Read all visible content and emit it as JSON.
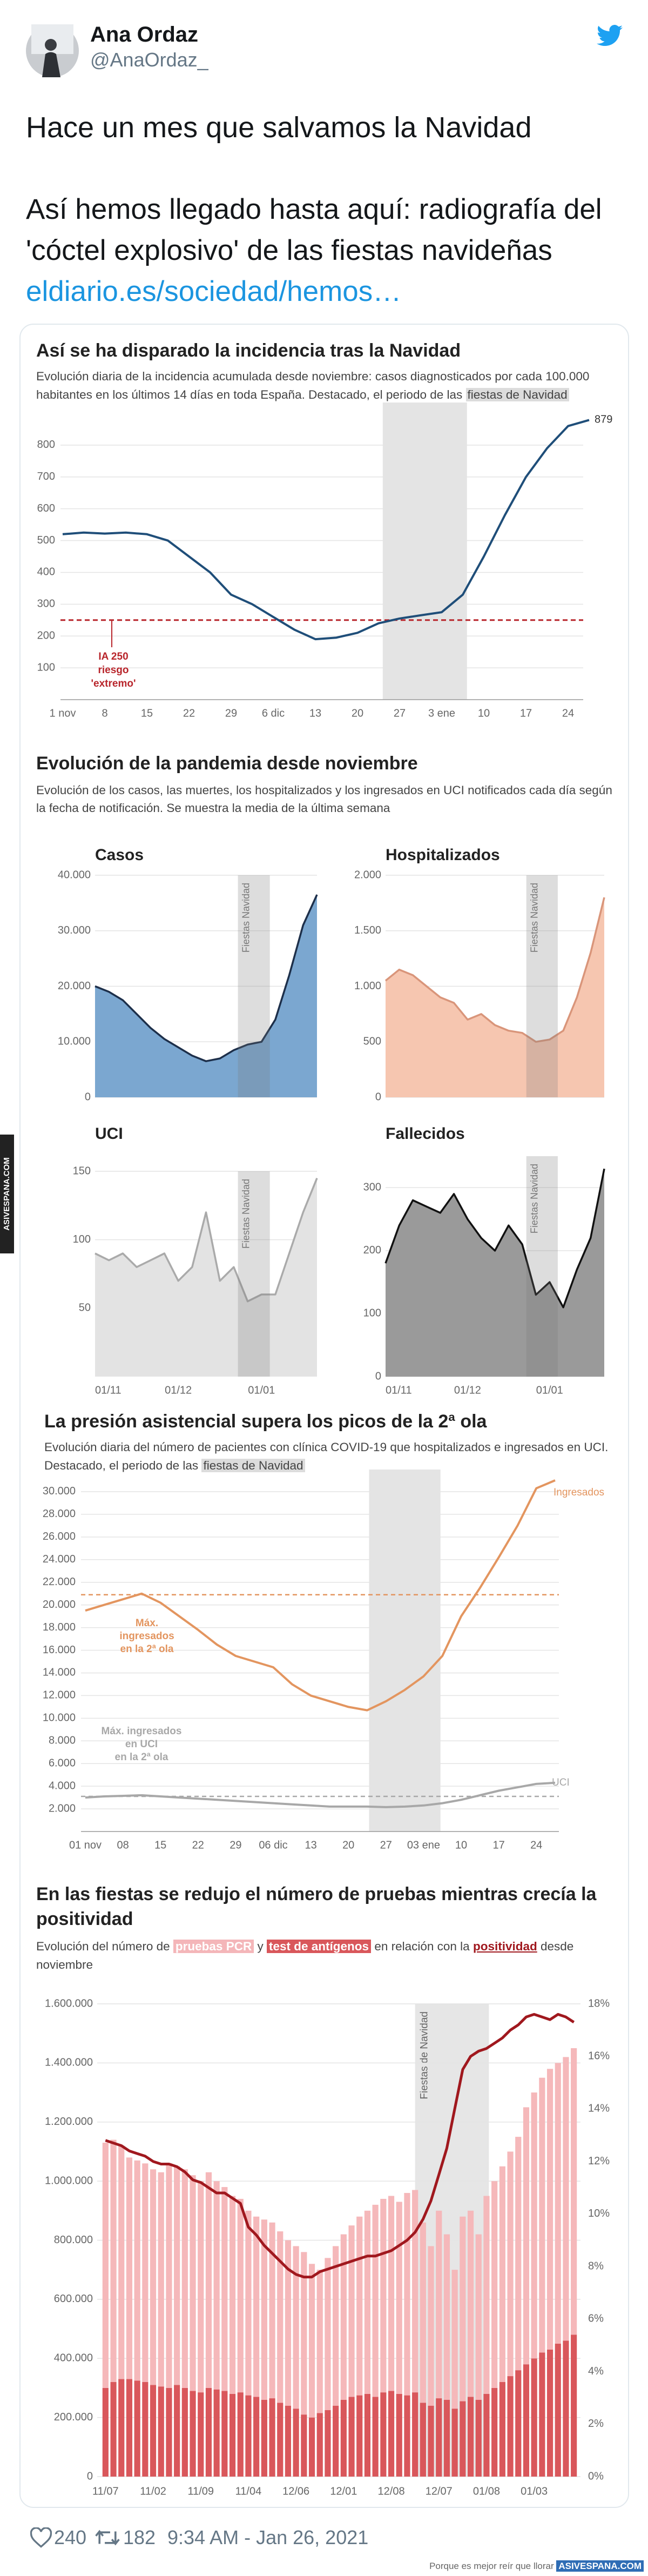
{
  "tweet": {
    "name": "Ana Ordaz",
    "handle": "@AnaOrdaz_",
    "text_1": "Hace un mes que salvamos la Navidad",
    "text_2": "Así hemos llegado hasta aquí: radiografía del 'cóctel explosivo' de las fiestas navideñas",
    "link": "eldiario.es/sociedad/hemos…",
    "likes": 240,
    "retweets": 182,
    "time": "9:34 AM - Jan 26, 2021"
  },
  "watermark": {
    "side": "ASIVESPANA.COM",
    "footer_text": "Porque es mejor reír que llorar",
    "footer_site": "ASIVESPANA.COM"
  },
  "chart_data": [
    {
      "type": "line",
      "title": "Así se ha disparado la incidencia tras la Navidad",
      "subtitle": "Evolución diaria de la incidencia acumulada desde noviembre: casos diagnosticados por cada 100.000 habitantes en los últimos 14 días en toda España. Destacado, el periodo de las",
      "highlight_label": "fiestas de Navidad",
      "categories": [
        "1 nov",
        null,
        "8",
        null,
        "15",
        null,
        "22",
        null,
        "29",
        null,
        "6 dic",
        null,
        "13",
        null,
        "20",
        null,
        "27",
        null,
        "3 ene",
        null,
        "10",
        null,
        "17",
        null,
        "24",
        null
      ],
      "values": [
        520,
        525,
        522,
        525,
        520,
        500,
        450,
        400,
        330,
        300,
        260,
        220,
        190,
        195,
        210,
        240,
        255,
        265,
        275,
        330,
        450,
        580,
        700,
        790,
        860,
        879
      ],
      "color": "#1f4e79",
      "threshold": 250,
      "threshold_color": "#b8252b",
      "threshold_label": [
        "IA 250",
        "riesgo",
        "'extremo'"
      ],
      "ylim": [
        0,
        900
      ],
      "yticks": [
        100,
        200,
        300,
        400,
        500,
        600,
        700,
        800
      ],
      "grid": true
    },
    {
      "type": "area",
      "title": "Evolución de la pandemia desde noviembre",
      "subtitle": "Evolución de los casos, las muertes, los hospitalizados y los ingresados en UCI notificados cada día según la fecha de notificación. Se muestra la media de la última semana",
      "band_label": "Fiestas Navidad",
      "categories": [
        "01/11",
        null,
        null,
        null,
        null,
        null,
        "01/12",
        null,
        null,
        null,
        null,
        null,
        "01/01",
        null,
        null,
        null,
        null
      ],
      "panels": [
        {
          "title": "Casos",
          "color": "#7ba7d0",
          "line_color": "#1d2f4a",
          "ylim": [
            0,
            40000
          ],
          "yticks": [
            0,
            {
              "value": 10000,
              "label": "10.000"
            },
            {
              "value": 20000,
              "label": "20.000"
            },
            {
              "value": 30000,
              "label": "30.000"
            },
            {
              "value": 40000,
              "label": "40.000"
            }
          ],
          "values": [
            20000,
            19000,
            17500,
            15000,
            12500,
            10500,
            9000,
            7500,
            6500,
            7000,
            8500,
            9500,
            10000,
            14000,
            22000,
            31000,
            36500
          ]
        },
        {
          "title": "Hospitalizados",
          "color": "#f6c6b0",
          "line_color": "#d9957a",
          "ylim": [
            0,
            2000
          ],
          "yticks": [
            0,
            500,
            {
              "value": 1000,
              "label": "1.000"
            },
            {
              "value": 1500,
              "label": "1.500"
            },
            {
              "value": 2000,
              "label": "2.000"
            }
          ],
          "values": [
            1050,
            1150,
            1100,
            1000,
            900,
            850,
            700,
            750,
            650,
            600,
            580,
            500,
            520,
            600,
            900,
            1300,
            1800
          ]
        },
        {
          "title": "UCI",
          "color": "#e3e3e3",
          "line_color": "#aaaaaa",
          "ylim": [
            0,
            150
          ],
          "yticks": [
            50,
            100,
            150
          ],
          "values": [
            90,
            85,
            90,
            80,
            85,
            90,
            70,
            80,
            120,
            70,
            80,
            55,
            60,
            60,
            90,
            120,
            145
          ]
        },
        {
          "title": "Fallecidos",
          "color": "#9a9a9a",
          "line_color": "#111111",
          "ylim": [
            0,
            350
          ],
          "yticks": [
            0,
            100,
            200,
            300
          ],
          "values": [
            180,
            240,
            280,
            270,
            260,
            290,
            250,
            220,
            200,
            240,
            210,
            130,
            150,
            110,
            170,
            220,
            330
          ]
        }
      ]
    },
    {
      "type": "line",
      "title": "La presión asistencial supera los picos de la 2ª ola",
      "subtitle": "Evolución diaria del número de pacientes con clínica COVID-19 que hospitalizados e ingresados en UCI. Destacado, el periodo de las",
      "highlight_label": "fiestas de Navidad",
      "categories": [
        "01 nov",
        null,
        "08",
        null,
        "15",
        null,
        "22",
        null,
        "29",
        null,
        "06 dic",
        null,
        "13",
        null,
        "20",
        null,
        "27",
        null,
        "03 ene",
        null,
        "10",
        null,
        "17",
        null,
        "24",
        null
      ],
      "series": [
        {
          "name": "Ingresados",
          "color": "#e3955f",
          "max": 20900,
          "max_label": [
            "Máx.",
            "ingresados",
            "en la 2ª ola"
          ],
          "values": [
            19500,
            20000,
            20500,
            21000,
            20200,
            19000,
            17800,
            16500,
            15500,
            15000,
            14500,
            13000,
            12000,
            11500,
            11000,
            10700,
            11500,
            12500,
            13700,
            15500,
            19000,
            21500,
            24200,
            27000,
            30300,
            31000
          ]
        },
        {
          "name": "UCI",
          "color": "#a8a8a8",
          "max": 3100,
          "max_label": [
            "Máx. ingresados",
            "en UCI",
            "en la 2ª ola"
          ],
          "values": [
            3000,
            3100,
            3150,
            3200,
            3100,
            3000,
            2900,
            2800,
            2700,
            2600,
            2500,
            2400,
            2300,
            2200,
            2200,
            2200,
            2150,
            2200,
            2300,
            2500,
            2800,
            3200,
            3600,
            3900,
            4200,
            4300
          ]
        }
      ],
      "ylim": [
        0,
        31000
      ],
      "yticks": [
        {
          "value": 2000,
          "label": "2.000"
        },
        {
          "value": 4000,
          "label": "4.000"
        },
        {
          "value": 6000,
          "label": "6.000"
        },
        {
          "value": 8000,
          "label": "8.000"
        },
        {
          "value": 10000,
          "label": "10.000"
        },
        {
          "value": 12000,
          "label": "12.000"
        },
        {
          "value": 14000,
          "label": "14.000"
        },
        {
          "value": 16000,
          "label": "16.000"
        },
        {
          "value": 18000,
          "label": "18.000"
        },
        {
          "value": 20000,
          "label": "20.000"
        },
        {
          "value": 22000,
          "label": "22.000"
        },
        {
          "value": 24000,
          "label": "24.000"
        },
        {
          "value": 26000,
          "label": "26.000"
        },
        {
          "value": 28000,
          "label": "28.000"
        },
        {
          "value": 30000,
          "label": "30.000"
        }
      ],
      "grid": true
    },
    {
      "type": "bar",
      "title": "En las fiestas se redujo el número de pruebas mientras crecía la positividad",
      "subtitle_1": "Evolución del número de",
      "subtitle_2": "y",
      "subtitle_3": "en relación con la",
      "subtitle_4": "desde noviembre",
      "band_label": "Fiestas de Navidad",
      "stacked": true,
      "categories": [
        "11/07",
        null,
        null,
        null,
        null,
        null,
        "11/02",
        null,
        null,
        null,
        null,
        null,
        "11/09",
        null,
        null,
        null,
        null,
        null,
        "11/04",
        null,
        null,
        null,
        null,
        null,
        "12/06",
        null,
        null,
        null,
        null,
        null,
        "12/01",
        null,
        null,
        null,
        null,
        null,
        "12/08",
        null,
        null,
        null,
        null,
        null,
        "12/07",
        null,
        null,
        null,
        null,
        null,
        "01/08",
        null,
        null,
        null,
        null,
        null,
        "01/03",
        null,
        null,
        null,
        null,
        null
      ],
      "series": [
        {
          "name": "test de antígenos",
          "color": "#d9575b",
          "values": [
            300000,
            320000,
            330000,
            330000,
            325000,
            320000,
            310000,
            305000,
            300000,
            310000,
            300000,
            290000,
            285000,
            300000,
            295000,
            290000,
            280000,
            285000,
            275000,
            270000,
            260000,
            265000,
            250000,
            240000,
            230000,
            210000,
            200000,
            215000,
            225000,
            240000,
            260000,
            270000,
            275000,
            280000,
            270000,
            285000,
            290000,
            280000,
            275000,
            285000,
            250000,
            240000,
            265000,
            260000,
            230000,
            255000,
            270000,
            260000,
            280000,
            300000,
            320000,
            340000,
            360000,
            380000,
            400000,
            420000,
            430000,
            450000,
            460000,
            480000
          ]
        },
        {
          "name": "pruebas PCR",
          "color": "#f5b8ba",
          "values": [
            830000,
            820000,
            790000,
            750000,
            745000,
            740000,
            730000,
            725000,
            760000,
            740000,
            740000,
            730000,
            715000,
            730000,
            705000,
            690000,
            670000,
            655000,
            625000,
            610000,
            610000,
            595000,
            580000,
            560000,
            550000,
            550000,
            520000,
            485000,
            515000,
            540000,
            560000,
            580000,
            605000,
            620000,
            650000,
            655000,
            660000,
            650000,
            685000,
            685000,
            610000,
            540000,
            635000,
            560000,
            470000,
            625000,
            630000,
            560000,
            670000,
            700000,
            730000,
            760000,
            790000,
            870000,
            900000,
            930000,
            950000,
            950000,
            960000,
            970000
          ]
        },
        {
          "name": "positividad",
          "color": "#a0181e",
          "axis": "y2",
          "values": [
            12.8,
            12.7,
            12.6,
            12.4,
            12.3,
            12.2,
            12.0,
            11.9,
            11.9,
            11.8,
            11.6,
            11.3,
            11.2,
            11.0,
            10.8,
            10.8,
            10.6,
            10.4,
            9.5,
            9.2,
            8.8,
            8.5,
            8.2,
            7.9,
            7.7,
            7.6,
            7.6,
            7.8,
            7.9,
            8.0,
            8.1,
            8.2,
            8.3,
            8.4,
            8.4,
            8.5,
            8.6,
            8.8,
            9.0,
            9.3,
            9.8,
            10.5,
            11.5,
            12.5,
            14.0,
            15.5,
            16.0,
            16.2,
            16.3,
            16.5,
            16.7,
            17.0,
            17.2,
            17.5,
            17.6,
            17.5,
            17.4,
            17.6,
            17.5,
            17.3
          ]
        }
      ],
      "ylim": [
        0,
        1600000
      ],
      "yticks": [
        0,
        {
          "value": 200000,
          "label": "200.000"
        },
        {
          "value": 400000,
          "label": "400.000"
        },
        {
          "value": 600000,
          "label": "600.000"
        },
        {
          "value": 800000,
          "label": "800.000"
        },
        {
          "value": 1000000,
          "label": "1.000.000"
        },
        {
          "value": 1200000,
          "label": "1.200.000"
        },
        {
          "value": 1400000,
          "label": "1.400.000"
        },
        {
          "value": 1600000,
          "label": "1.600.000"
        }
      ],
      "y2lim": [
        0,
        18
      ],
      "y2ticks": [
        {
          "value": 0,
          "label": "0%"
        },
        {
          "value": 2,
          "label": "2%"
        },
        {
          "value": 4,
          "label": "4%"
        },
        {
          "value": 6,
          "label": "6%"
        },
        {
          "value": 8,
          "label": "8%"
        },
        {
          "value": 10,
          "label": "10%"
        },
        {
          "value": 12,
          "label": "12%"
        },
        {
          "value": 14,
          "label": "14%"
        },
        {
          "value": 16,
          "label": "16%"
        },
        {
          "value": 18,
          "label": "18%"
        }
      ],
      "grid": true
    }
  ]
}
